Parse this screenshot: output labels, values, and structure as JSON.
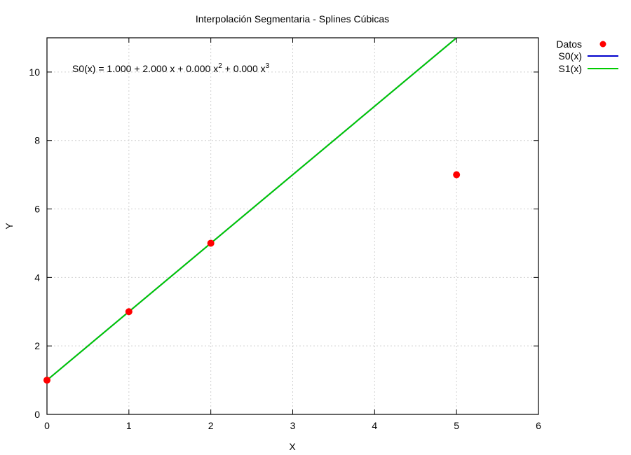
{
  "chart_data": {
    "type": "line",
    "title": "Interpolación Segmentaria - Splines Cúbicas",
    "xlabel": "X",
    "ylabel": "Y",
    "xlim": [
      0,
      6
    ],
    "ylim": [
      0,
      11
    ],
    "xticks": [
      0,
      1,
      2,
      3,
      4,
      5,
      6
    ],
    "yticks": [
      0,
      2,
      4,
      6,
      8,
      10
    ],
    "grid": true,
    "legend_position": "outside-top-right",
    "annotation": {
      "base": "S0(x) = 1.000 + 2.000 x + 0.000 x",
      "exp1": "2",
      "middle": " + 0.000 x",
      "exp2": "3"
    },
    "points": {
      "name": "Datos",
      "color": "#ff0000",
      "x": [
        0,
        1,
        2,
        5
      ],
      "y": [
        1,
        3,
        5,
        7
      ]
    },
    "series": [
      {
        "name": "S0(x)",
        "color": "#0000cc",
        "x": [
          0,
          5
        ],
        "y": [
          1,
          11
        ]
      },
      {
        "name": "S1(x)",
        "color": "#00cc00",
        "x": [
          0,
          5
        ],
        "y": [
          1,
          11
        ]
      }
    ]
  }
}
